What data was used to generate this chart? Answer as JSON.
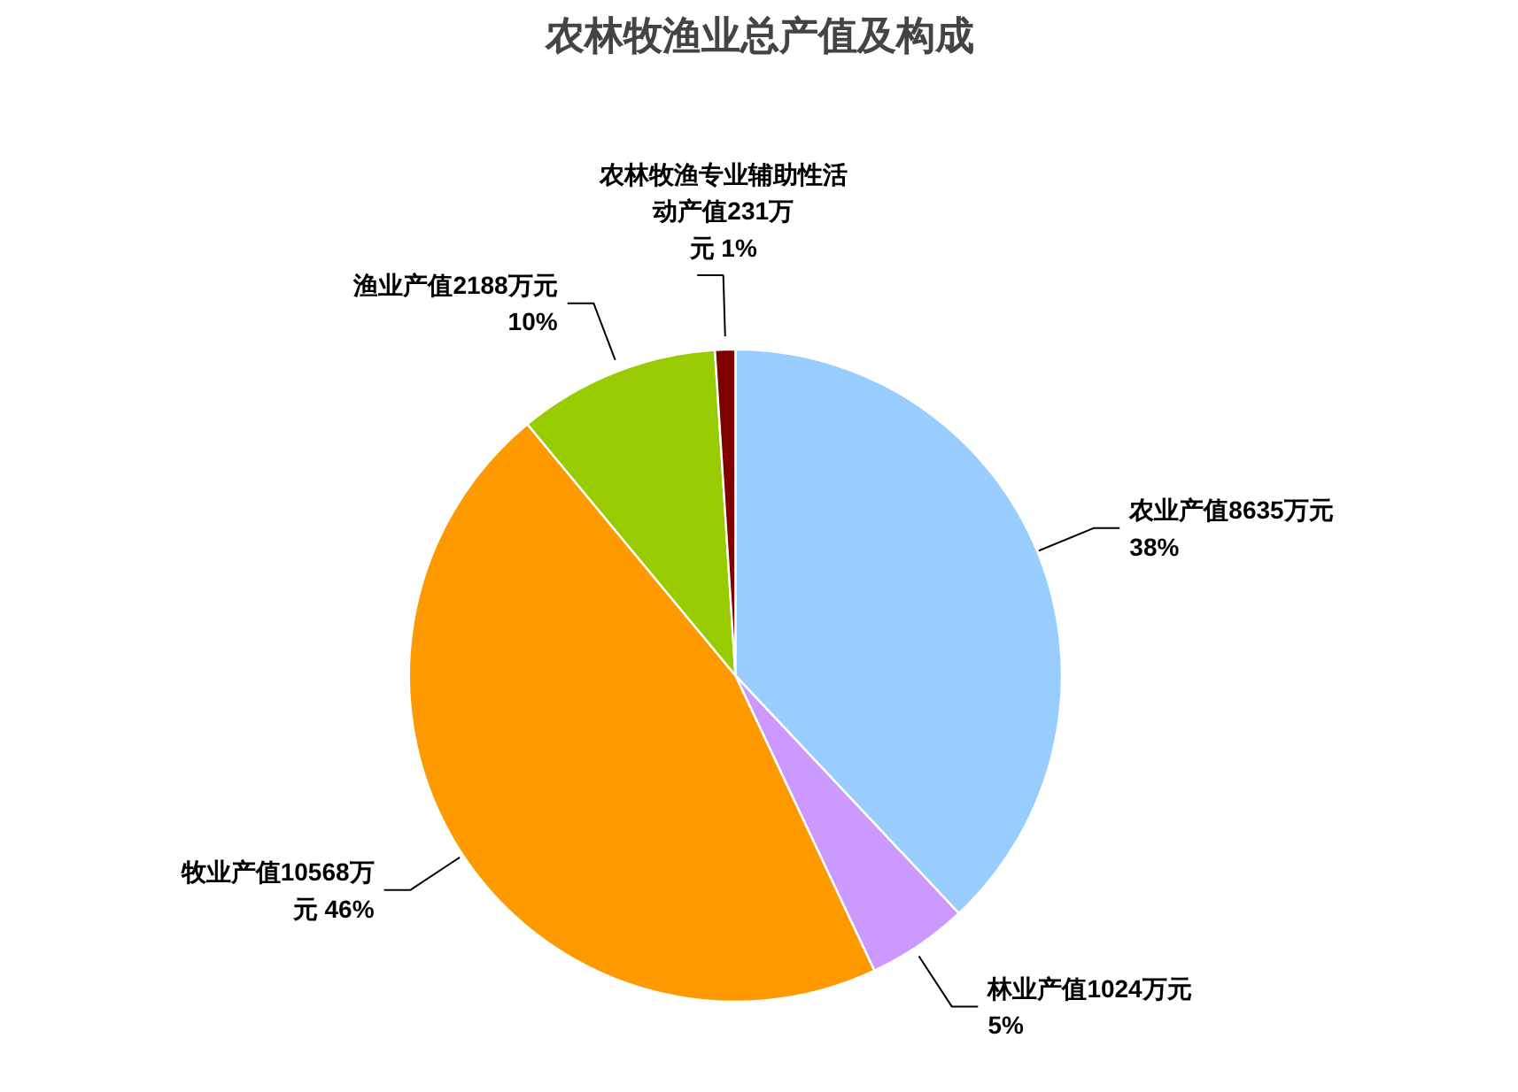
{
  "chart_data": {
    "type": "pie",
    "title": "农林牧渔业总产值及构成",
    "categories": [
      "农业产值8635万元",
      "林业产值1024万元",
      "牧业产值10568万元",
      "渔业产值2188万元",
      "农林牧渔专业辅助性活动产值231万元"
    ],
    "values": [
      38,
      5,
      46,
      10,
      1
    ],
    "colors": [
      "#99ccff",
      "#cc99ff",
      "#ff9900",
      "#99cc00",
      "#800000"
    ],
    "value_labels": [
      "38%",
      "5%",
      "46%",
      "10%",
      "1%"
    ],
    "legend": false
  }
}
